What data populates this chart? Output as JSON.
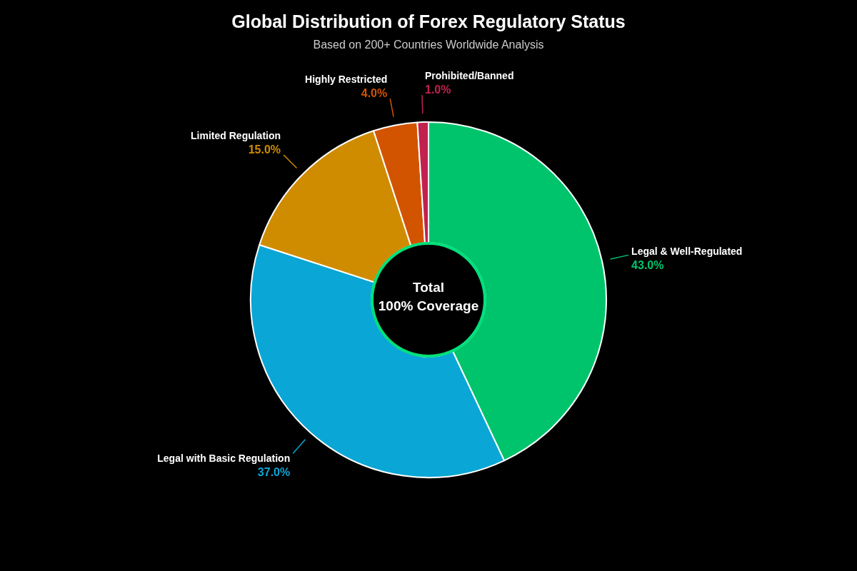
{
  "chart_data": {
    "type": "donut",
    "title": "Global Distribution of Forex Regulatory Status",
    "subtitle": "Based on 200+ Countries Worldwide Analysis",
    "categories": [
      "Legal & Well-Regulated",
      "Legal with Basic Regulation",
      "Limited Regulation",
      "Highly Restricted",
      "Prohibited/Banned"
    ],
    "values": [
      43,
      37,
      15,
      4,
      1
    ],
    "colors": [
      "#00c46c",
      "#0aa6d6",
      "#d08c00",
      "#d35400",
      "#c2214f"
    ],
    "value_labels": [
      "43.0%",
      "37.0%",
      "15.0%",
      "4.0%",
      "1.0%"
    ],
    "annotations": [
      "Total",
      "100% Coverage"
    ],
    "legend": false
  }
}
